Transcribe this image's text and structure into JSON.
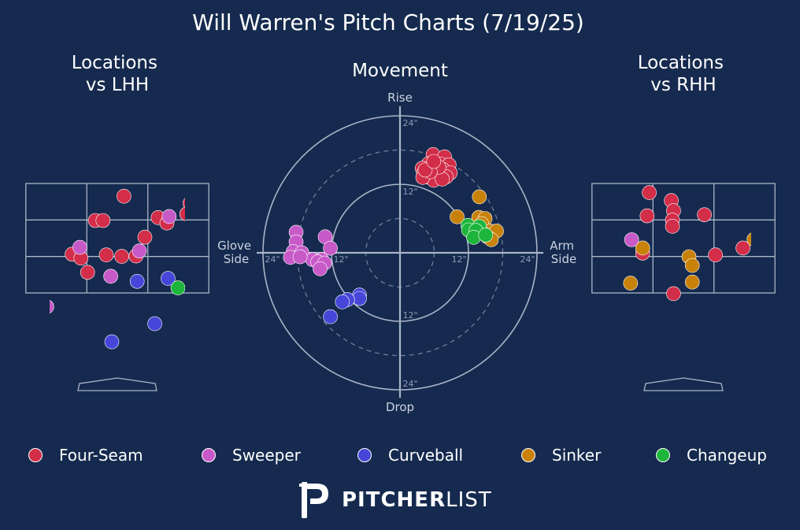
{
  "title": "Will Warren's Pitch Charts (7/19/25)",
  "panels": {
    "lhh_title": [
      "Locations",
      "vs LHH"
    ],
    "movement_title": "Movement",
    "rhh_title": [
      "Locations",
      "vs RHH"
    ]
  },
  "movement_axis": {
    "top": "Rise",
    "bottom": "Drop",
    "left": [
      "Glove",
      "Side"
    ],
    "right": [
      "Arm",
      "Side"
    ],
    "ring_labels": [
      "24\"",
      "12\"",
      "12\"",
      "24\"",
      "24\"",
      "12\"",
      "12\"",
      "24\""
    ]
  },
  "colors": {
    "background": "#152a4e",
    "Four-Seam": "#d22d49",
    "Sweeper": "#c85ac8",
    "Curveball": "#4646d8",
    "Sinker": "#c8820a",
    "Changeup": "#1db53b",
    "grid": "#aab4c8"
  },
  "legend": [
    "Four-Seam",
    "Sweeper",
    "Curveball",
    "Sinker",
    "Changeup"
  ],
  "brand": {
    "bold": "PITCHER",
    "light": "LIST",
    "logo": "pitcherlist-p-logo"
  },
  "chart_data": [
    {
      "type": "scatter",
      "title": "Locations vs LHH",
      "xlabel": "",
      "ylabel": "",
      "points": [
        {
          "pitch": "Four-Seam",
          "x": 0.06,
          "y": 4.17
        },
        {
          "pitch": "Four-Seam",
          "x": 0.66,
          "y": 3.98
        },
        {
          "pitch": "Four-Seam",
          "x": 1.05,
          "y": 3.77
        },
        {
          "pitch": "Four-Seam",
          "x": 0.63,
          "y": 3.68
        },
        {
          "pitch": "Four-Seam",
          "x": 0.37,
          "y": 3.58
        },
        {
          "pitch": "Four-Seam",
          "x": 1.21,
          "y": 3.52
        },
        {
          "pitch": "Four-Seam",
          "x": -0.2,
          "y": 3.5
        },
        {
          "pitch": "Four-Seam",
          "x": -0.13,
          "y": 3.5
        },
        {
          "pitch": "Four-Seam",
          "x": 0.25,
          "y": 3.04
        },
        {
          "pitch": "Four-Seam",
          "x": 0.8,
          "y": 2.95
        },
        {
          "pitch": "Four-Seam",
          "x": 1.15,
          "y": 3.07
        },
        {
          "pitch": "Four-Seam",
          "x": -0.41,
          "y": 2.57
        },
        {
          "pitch": "Four-Seam",
          "x": -0.1,
          "y": 2.55
        },
        {
          "pitch": "Four-Seam",
          "x": 0.04,
          "y": 2.51
        },
        {
          "pitch": "Four-Seam",
          "x": 0.17,
          "y": 2.52
        },
        {
          "pitch": "Four-Seam",
          "x": -0.33,
          "y": 2.46
        },
        {
          "pitch": "Four-Seam",
          "x": -1.07,
          "y": 2.56
        },
        {
          "pitch": "Four-Seam",
          "x": 0.96,
          "y": 2.41
        },
        {
          "pitch": "Four-Seam",
          "x": -0.27,
          "y": 2.07
        },
        {
          "pitch": "Four-Seam",
          "x": 1.05,
          "y": 1.65
        },
        {
          "pitch": "Four-Seam",
          "x": 0.45,
          "y": 3.43
        },
        {
          "pitch": "Sweeper",
          "x": 0.47,
          "y": 3.61
        },
        {
          "pitch": "Sweeper",
          "x": -0.34,
          "y": 2.76
        },
        {
          "pitch": "Sweeper",
          "x": 0.2,
          "y": 2.66
        },
        {
          "pitch": "Sweeper",
          "x": -0.06,
          "y": 1.96
        },
        {
          "pitch": "Sweeper",
          "x": -0.64,
          "y": 1.12
        },
        {
          "pitch": "Curveball",
          "x": 0.46,
          "y": 1.9
        },
        {
          "pitch": "Curveball",
          "x": 0.18,
          "y": 1.82
        },
        {
          "pitch": "Curveball",
          "x": 0.34,
          "y": 0.65
        },
        {
          "pitch": "Curveball",
          "x": -0.05,
          "y": 0.15
        },
        {
          "pitch": "Sinker",
          "x": 0.87,
          "y": 3.93
        },
        {
          "pitch": "Changeup",
          "x": 1.48,
          "y": 1.95
        },
        {
          "pitch": "Changeup",
          "x": 0.95,
          "y": 1.83
        },
        {
          "pitch": "Changeup",
          "x": 1.32,
          "y": 1.73
        },
        {
          "pitch": "Changeup",
          "x": 0.55,
          "y": 1.64
        }
      ]
    },
    {
      "type": "scatter",
      "title": "Movement",
      "xlabel": "",
      "ylabel": "",
      "xlim": [
        -24,
        24
      ],
      "ylim": [
        -24,
        24
      ],
      "points": [
        {
          "pitch": "Four-Seam",
          "x": 5.8,
          "y": 17.2
        },
        {
          "pitch": "Four-Seam",
          "x": 7.8,
          "y": 16.8
        },
        {
          "pitch": "Four-Seam",
          "x": 5.0,
          "y": 15.6
        },
        {
          "pitch": "Four-Seam",
          "x": 6.2,
          "y": 15.4
        },
        {
          "pitch": "Four-Seam",
          "x": 7.2,
          "y": 15.5
        },
        {
          "pitch": "Four-Seam",
          "x": 8.6,
          "y": 15.4
        },
        {
          "pitch": "Four-Seam",
          "x": 3.9,
          "y": 14.8
        },
        {
          "pitch": "Four-Seam",
          "x": 5.2,
          "y": 14.7
        },
        {
          "pitch": "Four-Seam",
          "x": 6.1,
          "y": 14.3
        },
        {
          "pitch": "Four-Seam",
          "x": 7.5,
          "y": 14.6
        },
        {
          "pitch": "Four-Seam",
          "x": 4.1,
          "y": 13.9
        },
        {
          "pitch": "Four-Seam",
          "x": 5.6,
          "y": 13.6
        },
        {
          "pitch": "Four-Seam",
          "x": 7.0,
          "y": 13.9
        },
        {
          "pitch": "Four-Seam",
          "x": 8.8,
          "y": 14.0
        },
        {
          "pitch": "Four-Seam",
          "x": 4.7,
          "y": 13.3
        },
        {
          "pitch": "Four-Seam",
          "x": 6.4,
          "y": 13.2
        },
        {
          "pitch": "Four-Seam",
          "x": 8.1,
          "y": 13.3
        },
        {
          "pitch": "Four-Seam",
          "x": 5.9,
          "y": 12.7
        },
        {
          "pitch": "Four-Seam",
          "x": 7.4,
          "y": 12.9
        },
        {
          "pitch": "Four-Seam",
          "x": 4.0,
          "y": 13.2
        },
        {
          "pitch": "Four-Seam",
          "x": 6.8,
          "y": 15.0
        },
        {
          "pitch": "Four-Seam",
          "x": 5.3,
          "y": 14.2
        },
        {
          "pitch": "Four-Seam",
          "x": 4.4,
          "y": 14.5
        },
        {
          "pitch": "Four-Seam",
          "x": 5.9,
          "y": 16.0
        },
        {
          "pitch": "Sinker",
          "x": 13.9,
          "y": 9.8
        },
        {
          "pitch": "Sinker",
          "x": 10.0,
          "y": 6.3
        },
        {
          "pitch": "Sinker",
          "x": 13.8,
          "y": 6.2
        },
        {
          "pitch": "Sinker",
          "x": 14.9,
          "y": 6.0
        },
        {
          "pitch": "Sinker",
          "x": 14.3,
          "y": 5.1
        },
        {
          "pitch": "Sinker",
          "x": 15.8,
          "y": 3.8
        },
        {
          "pitch": "Sinker",
          "x": 16.9,
          "y": 3.8
        },
        {
          "pitch": "Sinker",
          "x": 15.3,
          "y": 2.8
        },
        {
          "pitch": "Sinker",
          "x": 16.0,
          "y": 2.3
        },
        {
          "pitch": "Sinker",
          "x": 14.6,
          "y": 3.4
        },
        {
          "pitch": "Changeup",
          "x": 11.9,
          "y": 4.8
        },
        {
          "pitch": "Changeup",
          "x": 13.9,
          "y": 4.6
        },
        {
          "pitch": "Changeup",
          "x": 12.0,
          "y": 4.0
        },
        {
          "pitch": "Changeup",
          "x": 13.3,
          "y": 3.9
        },
        {
          "pitch": "Changeup",
          "x": 12.9,
          "y": 2.7
        },
        {
          "pitch": "Changeup",
          "x": 15.0,
          "y": 3.1
        },
        {
          "pitch": "Sweeper",
          "x": -18.2,
          "y": 3.6
        },
        {
          "pitch": "Sweeper",
          "x": -13.1,
          "y": 2.8
        },
        {
          "pitch": "Sweeper",
          "x": -18.2,
          "y": 1.9
        },
        {
          "pitch": "Sweeper",
          "x": -12.2,
          "y": 0.8
        },
        {
          "pitch": "Sweeper",
          "x": -18.7,
          "y": 0.2
        },
        {
          "pitch": "Sweeper",
          "x": -17.2,
          "y": 0.0
        },
        {
          "pitch": "Sweeper",
          "x": -15.3,
          "y": -1.2
        },
        {
          "pitch": "Sweeper",
          "x": -13.7,
          "y": -1.2
        },
        {
          "pitch": "Sweeper",
          "x": -19.2,
          "y": -0.8
        },
        {
          "pitch": "Sweeper",
          "x": -14.4,
          "y": -1.6
        },
        {
          "pitch": "Sweeper",
          "x": -13.2,
          "y": -1.8
        },
        {
          "pitch": "Sweeper",
          "x": -14.0,
          "y": -2.8
        },
        {
          "pitch": "Sweeper",
          "x": -17.5,
          "y": -0.7
        },
        {
          "pitch": "Curveball",
          "x": -7.1,
          "y": -7.4
        },
        {
          "pitch": "Curveball",
          "x": -7.1,
          "y": -8.0
        },
        {
          "pitch": "Curveball",
          "x": -9.2,
          "y": -8.2
        },
        {
          "pitch": "Curveball",
          "x": -10.1,
          "y": -8.6
        },
        {
          "pitch": "Curveball",
          "x": -12.2,
          "y": -11.2
        }
      ]
    },
    {
      "type": "scatter",
      "title": "Locations vs RHH",
      "xlabel": "",
      "ylabel": "",
      "points": [
        {
          "pitch": "Four-Seam",
          "x": -0.31,
          "y": 4.27
        },
        {
          "pitch": "Four-Seam",
          "x": -0.11,
          "y": 4.05
        },
        {
          "pitch": "Four-Seam",
          "x": 2.88,
          "y": 4.1
        },
        {
          "pitch": "Four-Seam",
          "x": -0.09,
          "y": 3.77
        },
        {
          "pitch": "Four-Seam",
          "x": -0.33,
          "y": 3.63
        },
        {
          "pitch": "Four-Seam",
          "x": -0.1,
          "y": 3.51
        },
        {
          "pitch": "Four-Seam",
          "x": -0.1,
          "y": 3.34
        },
        {
          "pitch": "Four-Seam",
          "x": 0.19,
          "y": 3.66
        },
        {
          "pitch": "Four-Seam",
          "x": -0.87,
          "y": 3.7
        },
        {
          "pitch": "Four-Seam",
          "x": -1.09,
          "y": 3.08
        },
        {
          "pitch": "Four-Seam",
          "x": -0.7,
          "y": 3.04
        },
        {
          "pitch": "Four-Seam",
          "x": -0.37,
          "y": 2.6
        },
        {
          "pitch": "Four-Seam",
          "x": 0.54,
          "y": 2.74
        },
        {
          "pitch": "Four-Seam",
          "x": 0.29,
          "y": 2.55
        },
        {
          "pitch": "Four-Seam",
          "x": -0.7,
          "y": 2.4
        },
        {
          "pitch": "Four-Seam",
          "x": -0.91,
          "y": 2.28
        },
        {
          "pitch": "Four-Seam",
          "x": -1.32,
          "y": 2.29
        },
        {
          "pitch": "Four-Seam",
          "x": -0.09,
          "y": 1.48
        },
        {
          "pitch": "Sinker",
          "x": -1.02,
          "y": 3.65
        },
        {
          "pitch": "Sinker",
          "x": 0.64,
          "y": 2.98
        },
        {
          "pitch": "Sinker",
          "x": -0.37,
          "y": 2.74
        },
        {
          "pitch": "Sinker",
          "x": -0.89,
          "y": 2.62
        },
        {
          "pitch": "Sinker",
          "x": -1.09,
          "y": 2.48
        },
        {
          "pitch": "Sinker",
          "x": -0.82,
          "y": 2.48
        },
        {
          "pitch": "Sinker",
          "x": 0.05,
          "y": 2.5
        },
        {
          "pitch": "Sinker",
          "x": 0.08,
          "y": 2.26
        },
        {
          "pitch": "Sinker",
          "x": -0.74,
          "y": 1.83
        },
        {
          "pitch": "Sinker",
          "x": -0.48,
          "y": 1.77
        },
        {
          "pitch": "Sinker",
          "x": -0.7,
          "y": 1.75
        },
        {
          "pitch": "Sinker",
          "x": 0.08,
          "y": 1.8
        },
        {
          "pitch": "Sinker",
          "x": -0.89,
          "y": 1.58
        },
        {
          "pitch": "Sinker",
          "x": 0.92,
          "y": 1.51
        },
        {
          "pitch": "Sweeper",
          "x": -0.47,
          "y": 2.97
        },
        {
          "pitch": "Sweeper",
          "x": -1.21,
          "y": 2.26
        },
        {
          "pitch": "Sweeper",
          "x": -1.18,
          "y": 1.65
        },
        {
          "pitch": "Sweeper",
          "x": -1.09,
          "y": 1.39
        },
        {
          "pitch": "Curveball",
          "x": -1.7,
          "y": 1.55
        }
      ]
    }
  ]
}
